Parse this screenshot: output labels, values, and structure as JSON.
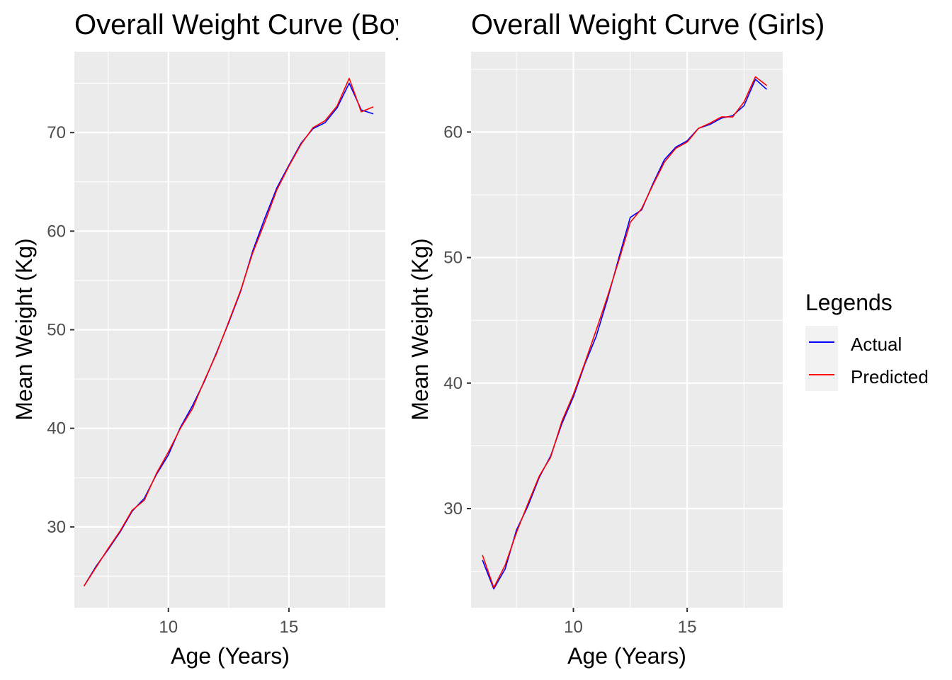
{
  "chart_data": [
    {
      "type": "line",
      "title": "Overall Weight Curve (Boys)",
      "xlabel": "Age (Years)",
      "ylabel": "Mean Weight (Kg)",
      "xlim": [
        6.1,
        19.0
      ],
      "ylim": [
        21.8,
        78.2
      ],
      "xticks": [
        10,
        15
      ],
      "yticks": [
        30,
        40,
        50,
        60,
        70
      ],
      "grid": true,
      "series": [
        {
          "name": "Actual",
          "color": "#0000ff",
          "x": [
            6.5,
            7.0,
            7.5,
            8.0,
            8.5,
            9.0,
            9.5,
            10.0,
            10.5,
            11.0,
            11.5,
            12.0,
            12.5,
            13.0,
            13.5,
            14.0,
            14.5,
            15.0,
            15.5,
            16.0,
            16.5,
            17.0,
            17.5,
            18.0,
            18.5
          ],
          "y": [
            24.0,
            26.0,
            27.7,
            29.5,
            31.6,
            32.9,
            35.3,
            37.3,
            40.1,
            42.3,
            44.8,
            47.7,
            50.7,
            53.9,
            58.0,
            61.3,
            64.4,
            66.7,
            68.9,
            70.4,
            71.0,
            72.5,
            75.0,
            72.3,
            71.9
          ]
        },
        {
          "name": "Predicted",
          "color": "#ff0000",
          "x": [
            6.5,
            7.0,
            7.5,
            8.0,
            8.5,
            9.0,
            9.5,
            10.0,
            10.5,
            11.0,
            11.5,
            12.0,
            12.5,
            13.0,
            13.5,
            14.0,
            14.5,
            15.0,
            15.5,
            16.0,
            16.5,
            17.0,
            17.5,
            18.0,
            18.5
          ],
          "y": [
            24.0,
            25.9,
            27.8,
            29.6,
            31.7,
            32.7,
            35.4,
            37.6,
            40.0,
            42.0,
            44.9,
            47.6,
            50.8,
            54.0,
            57.8,
            60.9,
            64.2,
            66.6,
            68.8,
            70.5,
            71.2,
            72.7,
            75.5,
            72.1,
            72.6
          ]
        }
      ]
    },
    {
      "type": "line",
      "title": "Overall Weight Curve (Girls)",
      "xlabel": "Age (Years)",
      "ylabel": "Mean Weight (Kg)",
      "xlim": [
        5.5,
        19.2
      ],
      "ylim": [
        22.1,
        66.4
      ],
      "xticks": [
        10,
        15
      ],
      "yticks": [
        30,
        40,
        50,
        60
      ],
      "grid": true,
      "series": [
        {
          "name": "Actual",
          "color": "#0000ff",
          "x": [
            6.0,
            6.5,
            7.0,
            7.5,
            8.0,
            8.5,
            9.0,
            9.5,
            10.0,
            10.5,
            11.0,
            11.5,
            12.0,
            12.5,
            13.0,
            13.5,
            14.0,
            14.5,
            15.0,
            15.5,
            16.0,
            16.5,
            17.0,
            17.5,
            18.0,
            18.5
          ],
          "y": [
            25.9,
            23.6,
            25.2,
            28.3,
            30.2,
            32.5,
            34.2,
            36.8,
            38.9,
            41.5,
            43.7,
            46.7,
            50.0,
            53.2,
            53.8,
            55.9,
            57.8,
            58.8,
            59.3,
            60.3,
            60.6,
            61.1,
            61.3,
            62.1,
            64.2,
            63.4
          ]
        },
        {
          "name": "Predicted",
          "color": "#ff0000",
          "x": [
            6.0,
            6.5,
            7.0,
            7.5,
            8.0,
            8.5,
            9.0,
            9.5,
            10.0,
            10.5,
            11.0,
            11.5,
            12.0,
            12.5,
            13.0,
            13.5,
            14.0,
            14.5,
            15.0,
            15.5,
            16.0,
            16.5,
            17.0,
            17.5,
            18.0,
            18.5
          ],
          "y": [
            26.3,
            23.7,
            25.5,
            28.1,
            30.4,
            32.6,
            34.1,
            37.0,
            39.1,
            41.6,
            44.2,
            46.9,
            49.8,
            52.8,
            53.9,
            55.8,
            57.6,
            58.7,
            59.2,
            60.3,
            60.7,
            61.2,
            61.2,
            62.4,
            64.4,
            63.7
          ]
        }
      ]
    }
  ],
  "legend": {
    "title": "Legends",
    "items": [
      {
        "label": "Actual",
        "color": "#0000ff"
      },
      {
        "label": "Predicted",
        "color": "#ff0000"
      }
    ]
  },
  "colors": {
    "panel_background": "#ebebeb",
    "grid_major": "#ffffff",
    "tick_text": "#4d4d4d"
  }
}
